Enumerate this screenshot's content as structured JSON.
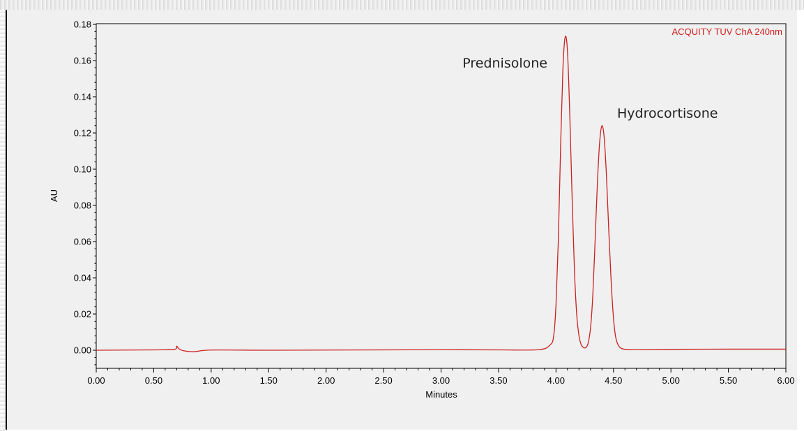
{
  "chart_data": {
    "type": "line",
    "detector_label": "ACQUITY TUV ChA 240nm",
    "xlabel": "Minutes",
    "ylabel": "AU",
    "xlim": [
      0.0,
      6.0
    ],
    "ylim": [
      -0.01,
      0.18
    ],
    "x_ticks": [
      "0.00",
      "0.50",
      "1.00",
      "1.50",
      "2.00",
      "2.50",
      "3.00",
      "3.50",
      "4.00",
      "4.50",
      "5.00",
      "5.50",
      "6.00"
    ],
    "y_ticks": [
      "0.00",
      "0.02",
      "0.04",
      "0.06",
      "0.08",
      "0.10",
      "0.12",
      "0.14",
      "0.16",
      "0.18"
    ],
    "grid": false,
    "line_color": "#cc1f1f",
    "series": [
      {
        "x": [
          0.0,
          0.5,
          0.68,
          0.7,
          0.72,
          0.76,
          0.85,
          1.0,
          1.5,
          2.0,
          2.5,
          3.0,
          3.5,
          3.85,
          3.95,
          3.98,
          4.0,
          4.02,
          4.04,
          4.06,
          4.08,
          4.1,
          4.12,
          4.14,
          4.16,
          4.18,
          4.2,
          4.22,
          4.24,
          4.26,
          4.28,
          4.3,
          4.32,
          4.34,
          4.36,
          4.38,
          4.4,
          4.42,
          4.44,
          4.46,
          4.48,
          4.5,
          4.52,
          4.55,
          4.6,
          4.7,
          5.0,
          5.5,
          6.0
        ],
        "y": [
          0.0,
          0.0002,
          0.0005,
          0.0022,
          0.0008,
          -0.0003,
          -0.0008,
          0.0001,
          0.0,
          0.0001,
          0.0002,
          0.0003,
          0.0002,
          0.0003,
          0.003,
          0.008,
          0.025,
          0.06,
          0.112,
          0.155,
          0.173,
          0.165,
          0.13,
          0.085,
          0.045,
          0.02,
          0.008,
          0.003,
          0.0015,
          0.0015,
          0.004,
          0.012,
          0.03,
          0.06,
          0.092,
          0.115,
          0.124,
          0.117,
          0.095,
          0.065,
          0.038,
          0.018,
          0.007,
          0.002,
          0.0005,
          0.0003,
          0.0005,
          0.0006,
          0.0006
        ]
      }
    ],
    "annotations": [
      {
        "text": "Prednisolone",
        "x": 4.07,
        "y": 0.173
      },
      {
        "text": "Hydrocortisone",
        "x": 4.4,
        "y": 0.124
      }
    ]
  }
}
